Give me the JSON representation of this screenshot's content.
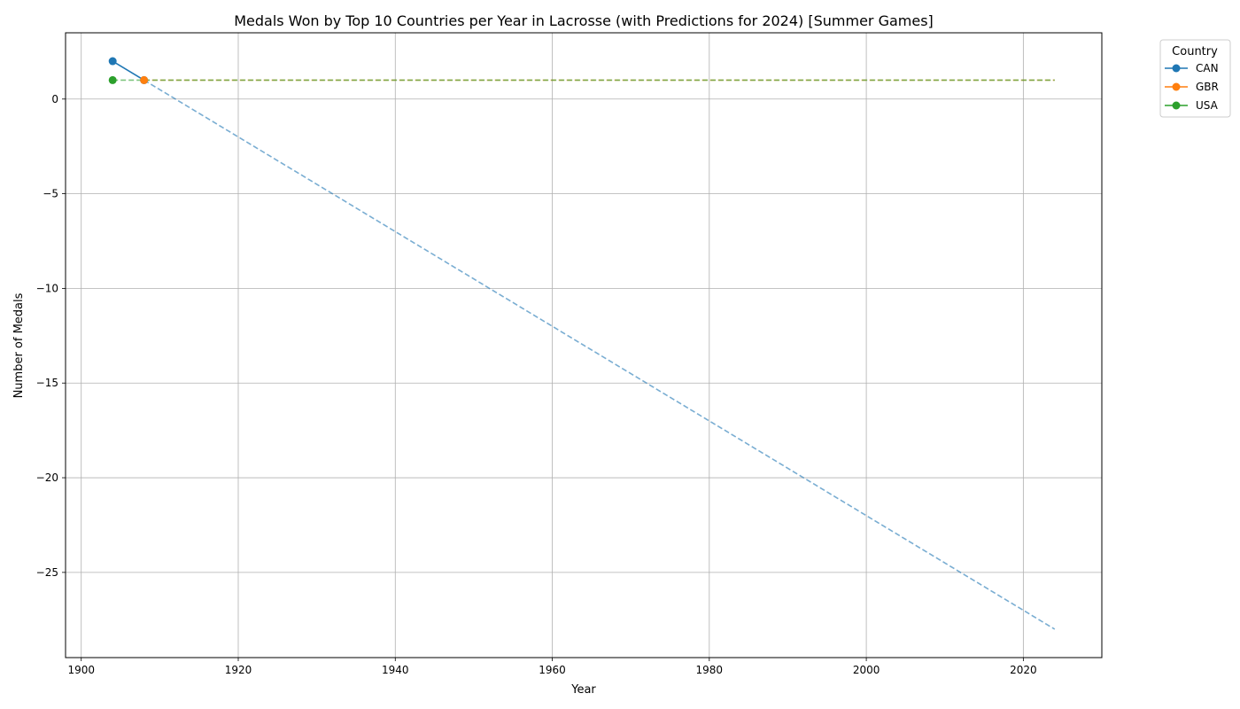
{
  "chart_data": {
    "type": "line",
    "title": "Medals Won by Top 10 Countries per Year in Lacrosse (with Predictions for 2024) [Summer Games]",
    "xlabel": "Year",
    "ylabel": "Number of Medals",
    "xlim": [
      1898,
      2030
    ],
    "ylim": [
      -29.5,
      3.5
    ],
    "xticks": [
      1900,
      1920,
      1940,
      1960,
      1980,
      2000,
      2020
    ],
    "yticks": [
      0,
      -5,
      -10,
      -15,
      -20,
      -25
    ],
    "ytick_labels": [
      "0",
      "−5",
      "−10",
      "−15",
      "−20",
      "−25"
    ],
    "grid": true,
    "legend": {
      "title": "Country",
      "placement": "outside-top-right"
    },
    "series": [
      {
        "name": "CAN",
        "color": "#1f77b4",
        "x": [
          1904,
          1908
        ],
        "y": [
          2,
          1
        ],
        "prediction": {
          "x": [
            1908,
            2024
          ],
          "y": [
            1,
            -28
          ]
        }
      },
      {
        "name": "GBR",
        "color": "#ff7f0e",
        "x": [
          1908
        ],
        "y": [
          1
        ],
        "prediction": {
          "x": [
            1908,
            2024
          ],
          "y": [
            1,
            1
          ]
        }
      },
      {
        "name": "USA",
        "color": "#2ca02c",
        "x": [
          1904
        ],
        "y": [
          1
        ],
        "prediction": {
          "x": [
            1904,
            2024
          ],
          "y": [
            1,
            1
          ]
        }
      }
    ]
  }
}
